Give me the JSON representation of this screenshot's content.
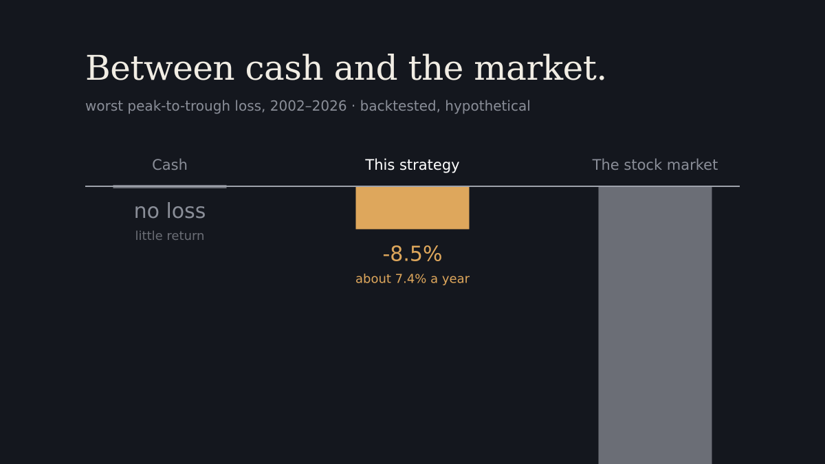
{
  "title": "Between cash and the market.",
  "subtitle": "worst peak-to-trough loss, 2002–2026 · backtested, hypothetical",
  "colors": {
    "background": "#14171e",
    "title": "#f1ede4",
    "muted": "#8a8e98",
    "baseline": "#9ea2ab",
    "cash": "#6b6e76",
    "strategy": "#dea75c",
    "market": "#6b6e76",
    "highlight_label": "#ffffff"
  },
  "chart_data": {
    "type": "bar",
    "categories": [
      "Cash",
      "This strategy",
      "The stock market"
    ],
    "values": [
      0,
      -8.5,
      -55
    ],
    "highlight": "This strategy",
    "data_labels": [
      "no loss",
      "-8.5%",
      ""
    ],
    "sublabels": [
      "little return",
      "about 7.4% a year",
      ""
    ],
    "bar_colors": [
      "#6b6e76",
      "#dea75c",
      "#6b6e76"
    ],
    "ylim": [
      -55,
      0
    ],
    "grid": false,
    "legend": "none"
  }
}
